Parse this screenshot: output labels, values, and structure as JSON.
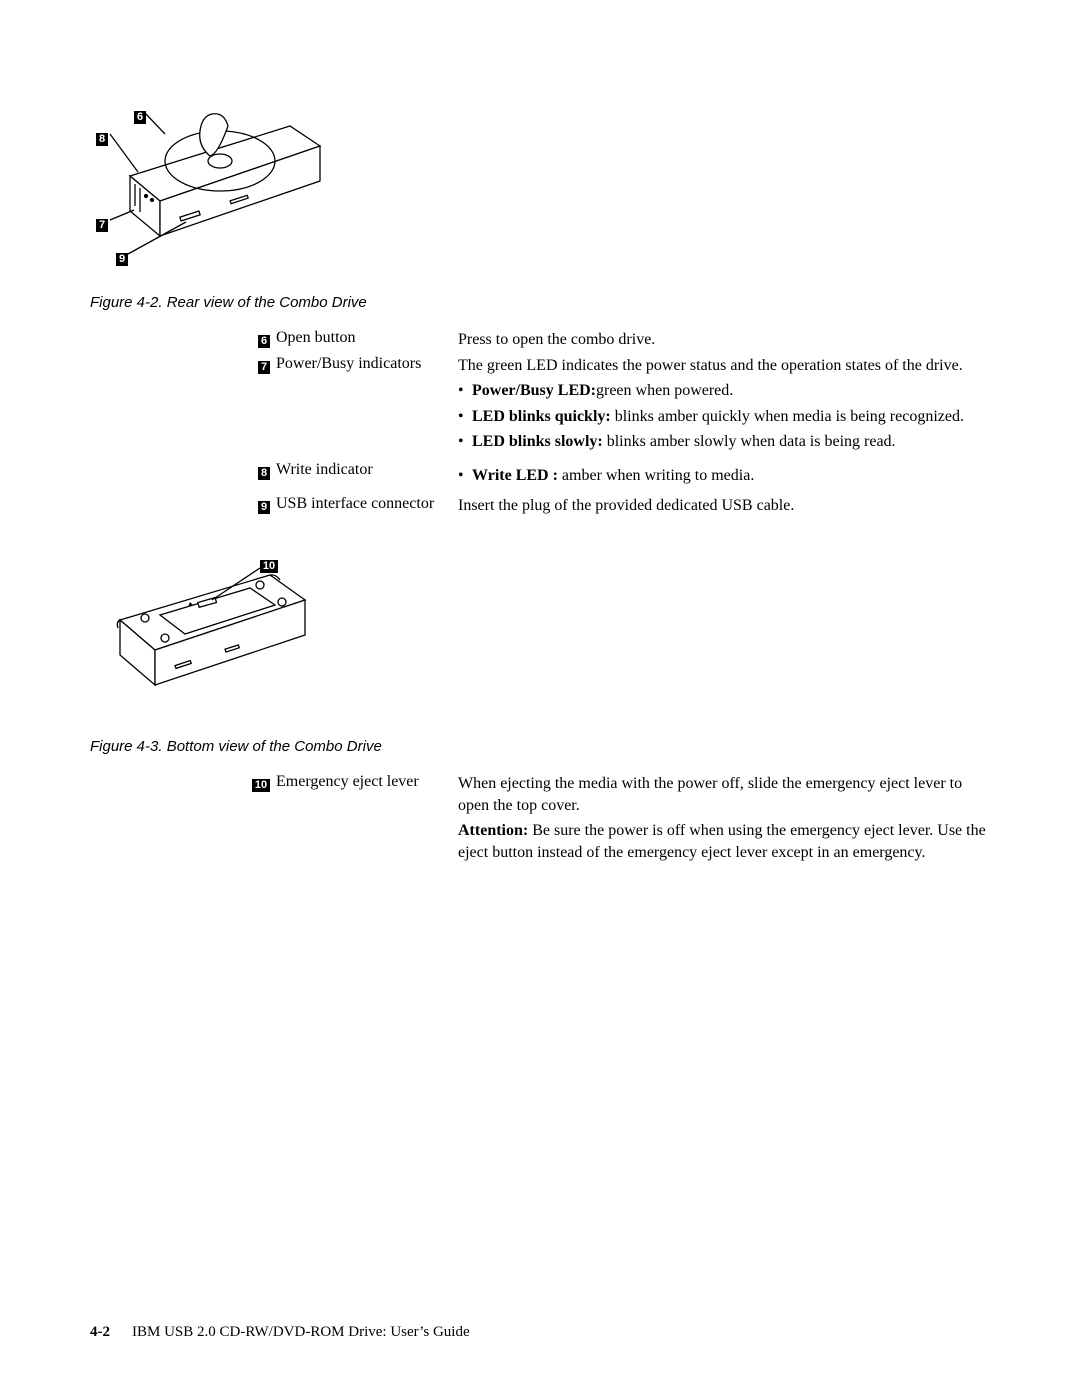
{
  "figure1": {
    "caption": "Figure 4-2. Rear view of the Combo Drive",
    "callouts": {
      "c6": "6",
      "c7": "7",
      "c8": "8",
      "c9": "9"
    }
  },
  "table1": {
    "rows": [
      {
        "num": "6",
        "label": "Open button",
        "desc_html": "Press to open the combo drive."
      },
      {
        "num": "7",
        "label": "Power/Busy indicators",
        "desc_html": "The green LED indicates the power status and the operation states of the drive.<ul><li><b>Power/Busy LED:</b>green when powered.</li><li><b>LED blinks quickly:</b> blinks amber quickly when media is being recognized.</li><li><b>LED blinks slowly:</b> blinks amber slowly when data is being read.</li></ul>"
      },
      {
        "num": "8",
        "label": "Write indicator",
        "desc_html": "<ul><li><b>Write LED :</b> amber when writing to media.</li></ul>"
      },
      {
        "num": "9",
        "label": "USB interface connector",
        "desc_html": "Insert the plug of the provided dedicated USB cable."
      }
    ]
  },
  "figure2": {
    "caption": "Figure 4-3. Bottom view of the Combo Drive",
    "callouts": {
      "c10": "10"
    }
  },
  "table2": {
    "rows": [
      {
        "num": "10",
        "label": "Emergency eject lever",
        "desc_html": "<p>When ejecting the media with the power off, slide the emergency eject lever to open the top cover.</p><p><b>Attention:</b> Be sure the power is off when using the emergency eject lever. Use the eject button instead of the emergency eject lever except in an emergency.</p>"
      }
    ]
  },
  "footer": {
    "page_num": "4-2",
    "title": "IBM USB 2.0 CD-RW/DVD-ROM Drive: User’s Guide"
  },
  "colors": {
    "text": "#000000",
    "bg": "#ffffff",
    "box_bg": "#000000",
    "box_fg": "#ffffff",
    "stroke": "#000000"
  }
}
